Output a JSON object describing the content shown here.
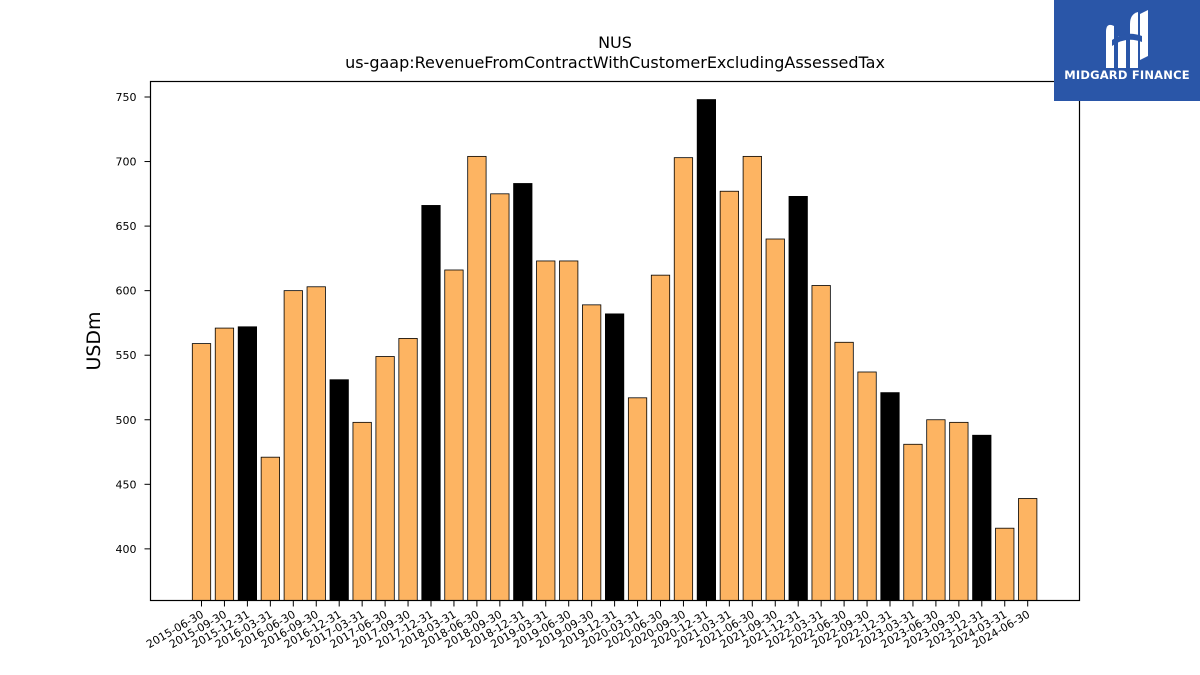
{
  "brand": {
    "name": "MIDGARD FINANCE",
    "logo_icon": "midgard-m-icon",
    "bg_color": "#2a56a8"
  },
  "colors": {
    "bar_default": "#fdb462",
    "bar_highlight": "#000000",
    "bar_edge": "#000000"
  },
  "chart_data": {
    "type": "bar",
    "title": "NUS",
    "subtitle": "us-gaap:RevenueFromContractWithCustomerExcludingAssessedTax",
    "xlabel": "",
    "ylabel": "USDm",
    "ylim": [
      360,
      762
    ],
    "yticks": [
      400,
      450,
      500,
      550,
      600,
      650,
      700,
      750
    ],
    "grid": false,
    "categories": [
      "2015-06-30",
      "2015-09-30",
      "2015-12-31",
      "2016-03-31",
      "2016-06-30",
      "2016-09-30",
      "2016-12-31",
      "2017-03-31",
      "2017-06-30",
      "2017-09-30",
      "2017-12-31",
      "2018-03-31",
      "2018-06-30",
      "2018-09-30",
      "2018-12-31",
      "2019-03-31",
      "2019-06-30",
      "2019-09-30",
      "2019-12-31",
      "2020-03-31",
      "2020-06-30",
      "2020-09-30",
      "2020-12-31",
      "2021-03-31",
      "2021-06-30",
      "2021-09-30",
      "2021-12-31",
      "2022-03-31",
      "2022-06-30",
      "2022-09-30",
      "2022-12-31",
      "2023-03-31",
      "2023-06-30",
      "2023-09-30",
      "2023-12-31",
      "2024-03-31",
      "2024-06-30"
    ],
    "values": [
      559,
      571,
      572,
      471,
      600,
      603,
      531,
      498,
      549,
      563,
      666,
      616,
      704,
      675,
      683,
      623,
      623,
      589,
      582,
      517,
      612,
      703,
      748,
      677,
      704,
      640,
      673,
      604,
      560,
      537,
      521,
      481,
      500,
      498,
      488,
      416,
      439
    ],
    "highlighted": [
      false,
      false,
      true,
      false,
      false,
      false,
      true,
      false,
      false,
      false,
      true,
      false,
      false,
      false,
      true,
      false,
      false,
      false,
      true,
      false,
      false,
      false,
      true,
      false,
      false,
      false,
      true,
      false,
      false,
      false,
      true,
      false,
      false,
      false,
      true,
      false,
      false
    ]
  }
}
